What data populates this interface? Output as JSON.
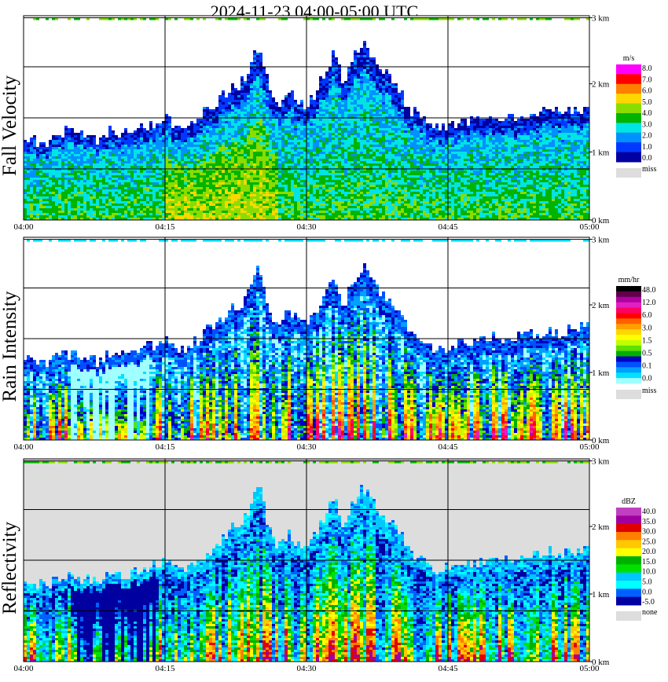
{
  "title": "2024-11-23   04:00-05:00 UTC",
  "chart_data": [
    {
      "type": "heatmap",
      "name": "fall-velocity",
      "ylabel": "Fall Velocity",
      "x_ticks": [
        "04:00",
        "04:15",
        "04:30",
        "04:45",
        "05:00"
      ],
      "y_ticks": [
        "0 km",
        "1 km",
        "2 km",
        "3 km"
      ],
      "ylim_km": [
        0,
        3
      ],
      "units": "m/s",
      "grid": true,
      "missing_color": "#dddddd",
      "background": "#ffffff",
      "colorbar": {
        "labels": [
          "8.0",
          "7.0",
          "6.0",
          "5.0",
          "4.0",
          "3.0",
          "2.0",
          "1.0",
          "0.0",
          "miss"
        ],
        "colors": [
          "#ff00ff",
          "#ff0000",
          "#ff7f00",
          "#ffd700",
          "#8bdc00",
          "#00b400",
          "#00e4e4",
          "#0090ff",
          "#0038ff",
          "#0000a0"
        ]
      },
      "echo_top_km": [
        1.25,
        1.2,
        1.15,
        1.2,
        1.3,
        1.3,
        1.25,
        1.2,
        1.2,
        1.3,
        1.3,
        1.3,
        1.35,
        1.4,
        1.45,
        1.55,
        1.4,
        1.3,
        1.45,
        1.6,
        1.7,
        1.8,
        2.0,
        2.0,
        2.3,
        2.6,
        2.0,
        1.7,
        1.9,
        1.8,
        1.7,
        1.9,
        2.2,
        2.5,
        2.0,
        2.4,
        2.6,
        2.4,
        2.2,
        2.1,
        1.9,
        1.65,
        1.55,
        1.4,
        1.35,
        1.4,
        1.45,
        1.45,
        1.45,
        1.5,
        1.55,
        1.5,
        1.55,
        1.55,
        1.6,
        1.6,
        1.65,
        1.6,
        1.65,
        1.65,
        1.7
      ],
      "palette": [
        "#0000a0",
        "#0038ff",
        "#0090ff",
        "#00e4e4",
        "#00b400",
        "#8bdc00",
        "#ffd700",
        "#ff7f00",
        "#ff0000",
        "#ff00ff"
      ]
    },
    {
      "type": "heatmap",
      "name": "rain-intensity",
      "ylabel": "Rain Intensity",
      "x_ticks": [
        "04:00",
        "04:15",
        "04:30",
        "04:45",
        "05:00"
      ],
      "y_ticks": [
        "0 km",
        "1 km",
        "2 km",
        "3 km"
      ],
      "ylim_km": [
        0,
        3
      ],
      "units": "mm/hr",
      "grid": true,
      "missing_color": "#dddddd",
      "background": "#ffffff",
      "colorbar": {
        "labels": [
          "48.0",
          "12.0",
          "6.0",
          "3.0",
          "1.5",
          "0.5",
          "0.1",
          "0.0",
          "miss"
        ],
        "colors": [
          "#000000",
          "#60004a",
          "#b000a0",
          "#e020c0",
          "#ff0066",
          "#ff0000",
          "#ff6000",
          "#ff9f00",
          "#ffd700",
          "#ffff00",
          "#c0ff00",
          "#60e000",
          "#00b000",
          "#0000c0",
          "#0050ff",
          "#00a0ff",
          "#00e0ff",
          "#a0ffff"
        ]
      },
      "echo_top_km": [
        1.25,
        1.2,
        1.15,
        1.2,
        1.3,
        1.3,
        1.25,
        1.2,
        1.2,
        1.3,
        1.3,
        1.3,
        1.35,
        1.4,
        1.45,
        1.55,
        1.4,
        1.3,
        1.45,
        1.6,
        1.7,
        1.8,
        2.0,
        2.0,
        2.3,
        2.6,
        2.0,
        1.7,
        1.9,
        1.8,
        1.7,
        1.9,
        2.2,
        2.5,
        2.0,
        2.4,
        2.6,
        2.4,
        2.2,
        2.1,
        1.9,
        1.65,
        1.55,
        1.4,
        1.35,
        1.4,
        1.45,
        1.45,
        1.45,
        1.5,
        1.55,
        1.5,
        1.55,
        1.55,
        1.6,
        1.6,
        1.65,
        1.6,
        1.65,
        1.65,
        1.7
      ],
      "palette": [
        "#a0ffff",
        "#00e0ff",
        "#00a0ff",
        "#0050ff",
        "#0000c0",
        "#00b000",
        "#60e000",
        "#c0ff00",
        "#ffff00",
        "#ffd700",
        "#ff9f00",
        "#ff6000",
        "#ff0000",
        "#ff0066",
        "#e020c0",
        "#b000a0"
      ]
    },
    {
      "type": "heatmap",
      "name": "reflectivity",
      "ylabel": "Reflectivity",
      "x_ticks": [
        "04:00",
        "04:15",
        "04:30",
        "04:45",
        "05:00"
      ],
      "y_ticks": [
        "0 km",
        "1 km",
        "2 km",
        "3 km"
      ],
      "ylim_km": [
        0,
        3
      ],
      "units": "dBZ",
      "grid": true,
      "missing_color": "#dddddd",
      "background": "#dddddd",
      "colorbar": {
        "labels": [
          "40.0",
          "35.0",
          "30.0",
          "25.0",
          "20.0",
          "15.0",
          "10.0",
          "5.0",
          "0.0",
          "-5.0",
          "none"
        ],
        "colors": [
          "#c040c0",
          "#a000a0",
          "#e00000",
          "#ff8000",
          "#ffc800",
          "#ffff00",
          "#00b000",
          "#00e000",
          "#00c8ff",
          "#00ffff",
          "#0060ff",
          "#0000a0"
        ]
      },
      "echo_top_km": [
        1.25,
        1.2,
        1.15,
        1.2,
        1.3,
        1.3,
        1.25,
        1.2,
        1.2,
        1.3,
        1.3,
        1.3,
        1.35,
        1.4,
        1.45,
        1.55,
        1.4,
        1.3,
        1.45,
        1.6,
        1.7,
        1.8,
        2.0,
        2.0,
        2.3,
        2.6,
        2.0,
        1.7,
        1.9,
        1.8,
        1.7,
        1.9,
        2.2,
        2.5,
        2.0,
        2.4,
        2.6,
        2.4,
        2.2,
        2.1,
        1.9,
        1.65,
        1.55,
        1.4,
        1.35,
        1.4,
        1.45,
        1.45,
        1.45,
        1.5,
        1.55,
        1.5,
        1.55,
        1.55,
        1.6,
        1.6,
        1.65,
        1.6,
        1.65,
        1.65,
        1.7
      ],
      "palette": [
        "#0000a0",
        "#0060ff",
        "#00c8ff",
        "#00ffff",
        "#00e000",
        "#00b000",
        "#ffff00",
        "#ffc800",
        "#ff8000",
        "#e00000",
        "#a000a0"
      ]
    }
  ]
}
